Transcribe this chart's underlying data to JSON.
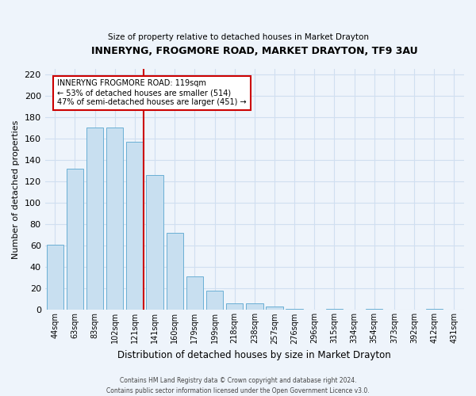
{
  "title": "INNERYNG, FROGMORE ROAD, MARKET DRAYTON, TF9 3AU",
  "subtitle": "Size of property relative to detached houses in Market Drayton",
  "xlabel": "Distribution of detached houses by size in Market Drayton",
  "ylabel": "Number of detached properties",
  "footer_line1": "Contains HM Land Registry data © Crown copyright and database right 2024.",
  "footer_line2": "Contains public sector information licensed under the Open Government Licence v3.0.",
  "bar_labels": [
    "44sqm",
    "63sqm",
    "83sqm",
    "102sqm",
    "121sqm",
    "141sqm",
    "160sqm",
    "179sqm",
    "199sqm",
    "218sqm",
    "238sqm",
    "257sqm",
    "276sqm",
    "296sqm",
    "315sqm",
    "334sqm",
    "354sqm",
    "373sqm",
    "392sqm",
    "412sqm",
    "431sqm"
  ],
  "bar_values": [
    61,
    132,
    170,
    170,
    157,
    126,
    72,
    31,
    18,
    6,
    6,
    3,
    1,
    0,
    1,
    0,
    1,
    0,
    0,
    1,
    0
  ],
  "bar_color": "#c8dff0",
  "bar_edge_color": "#6aafd4",
  "vline_index": 4,
  "vline_color": "#cc0000",
  "annotation_text": "INNERYNG FROGMORE ROAD: 119sqm\n← 53% of detached houses are smaller (514)\n47% of semi-detached houses are larger (451) →",
  "annotation_box_edge_color": "#cc0000",
  "ylim": [
    0,
    225
  ],
  "yticks": [
    0,
    20,
    40,
    60,
    80,
    100,
    120,
    140,
    160,
    180,
    200,
    220
  ],
  "bg_color": "#eef4fb",
  "grid_color": "#d0dff0"
}
